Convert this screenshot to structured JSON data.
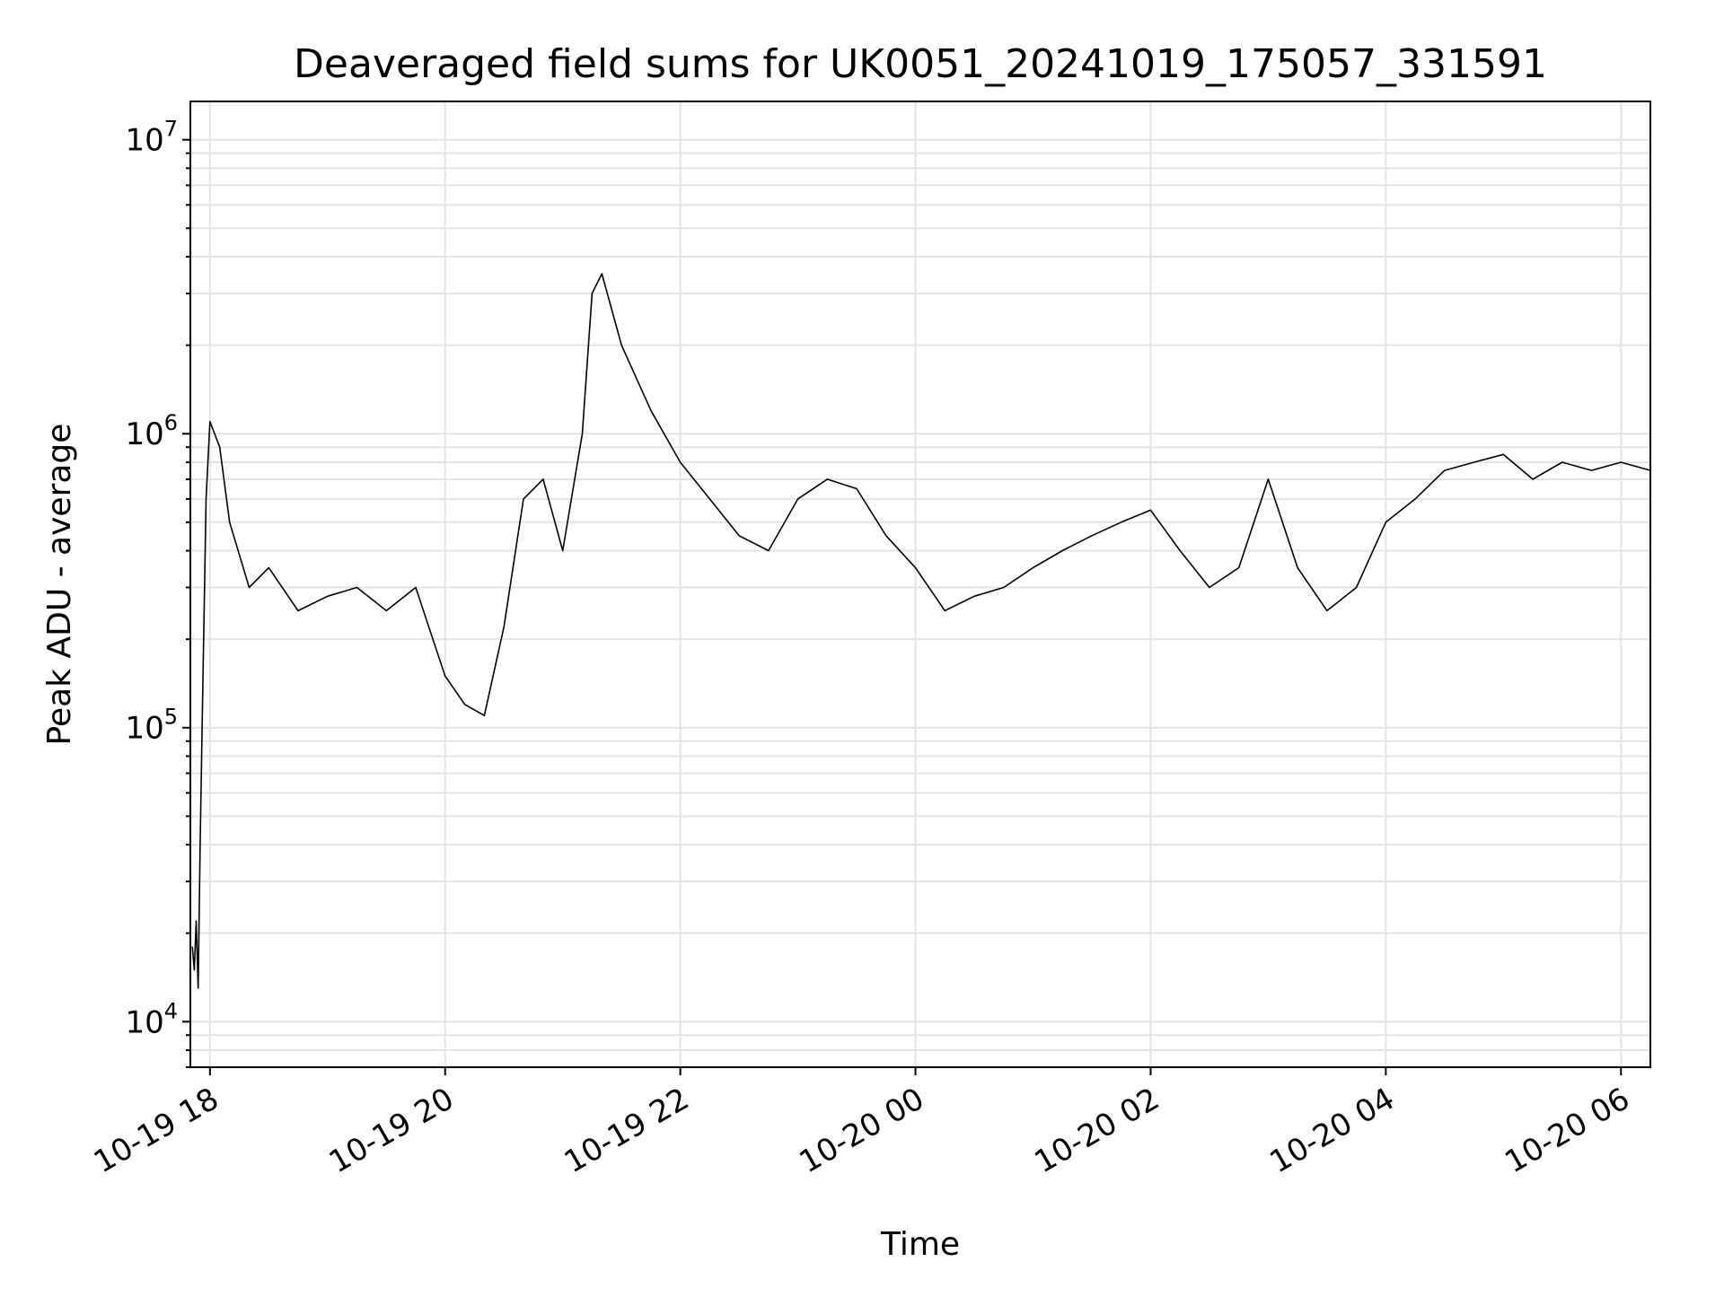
{
  "chart_data": {
    "type": "line",
    "title": "Deaveraged field sums for UK0051_20241019_175057_331591",
    "xlabel": "Time",
    "ylabel": "Peak ADU - average",
    "yscale": "log",
    "xlim": [
      "2024-10-19 17:50",
      "2024-10-20 06:15"
    ],
    "ylim": [
      7000,
      13500000
    ],
    "x_ticks": [
      "10-19 18",
      "10-19 20",
      "10-19 22",
      "10-20 00",
      "10-20 02",
      "10-20 04",
      "10-20 06"
    ],
    "y_ticks": [
      {
        "base": "10",
        "exp": "4",
        "value": 10000
      },
      {
        "base": "10",
        "exp": "5",
        "value": 100000
      },
      {
        "base": "10",
        "exp": "6",
        "value": 1000000
      },
      {
        "base": "10",
        "exp": "7",
        "value": 10000000
      }
    ],
    "grid": true,
    "series": [
      {
        "color": "#000000",
        "x": [
          "2024-10-19 17:51",
          "2024-10-19 17:52",
          "2024-10-19 17:53",
          "2024-10-19 17:54",
          "2024-10-19 17:55",
          "2024-10-19 17:56",
          "2024-10-19 17:58",
          "2024-10-19 18:00",
          "2024-10-19 18:05",
          "2024-10-19 18:10",
          "2024-10-19 18:20",
          "2024-10-19 18:30",
          "2024-10-19 18:45",
          "2024-10-19 19:00",
          "2024-10-19 19:15",
          "2024-10-19 19:30",
          "2024-10-19 19:45",
          "2024-10-19 20:00",
          "2024-10-19 20:10",
          "2024-10-19 20:20",
          "2024-10-19 20:30",
          "2024-10-19 20:40",
          "2024-10-19 20:50",
          "2024-10-19 21:00",
          "2024-10-19 21:10",
          "2024-10-19 21:15",
          "2024-10-19 21:20",
          "2024-10-19 21:30",
          "2024-10-19 21:45",
          "2024-10-19 22:00",
          "2024-10-19 22:15",
          "2024-10-19 22:30",
          "2024-10-19 22:45",
          "2024-10-19 23:00",
          "2024-10-19 23:15",
          "2024-10-19 23:30",
          "2024-10-19 23:45",
          "2024-10-20 00:00",
          "2024-10-20 00:15",
          "2024-10-20 00:30",
          "2024-10-20 00:45",
          "2024-10-20 01:00",
          "2024-10-20 01:15",
          "2024-10-20 01:30",
          "2024-10-20 01:45",
          "2024-10-20 02:00",
          "2024-10-20 02:15",
          "2024-10-20 02:30",
          "2024-10-20 02:45",
          "2024-10-20 03:00",
          "2024-10-20 03:15",
          "2024-10-20 03:30",
          "2024-10-20 03:45",
          "2024-10-20 04:00",
          "2024-10-20 04:15",
          "2024-10-20 04:30",
          "2024-10-20 04:45",
          "2024-10-20 05:00",
          "2024-10-20 05:15",
          "2024-10-20 05:30",
          "2024-10-20 05:45",
          "2024-10-20 06:00",
          "2024-10-20 06:15"
        ],
        "y": [
          18000,
          15000,
          22000,
          13000,
          40000,
          100000,
          600000,
          1100000,
          900000,
          500000,
          300000,
          350000,
          250000,
          280000,
          300000,
          250000,
          300000,
          150000,
          120000,
          110000,
          220000,
          600000,
          700000,
          400000,
          1000000,
          3000000,
          3500000,
          2000000,
          1200000,
          800000,
          600000,
          450000,
          400000,
          600000,
          700000,
          650000,
          450000,
          350000,
          250000,
          280000,
          300000,
          350000,
          400000,
          450000,
          500000,
          550000,
          400000,
          300000,
          350000,
          700000,
          350000,
          250000,
          300000,
          500000,
          600000,
          750000,
          800000,
          850000,
          700000,
          800000,
          750000,
          800000,
          750000
        ]
      }
    ]
  }
}
